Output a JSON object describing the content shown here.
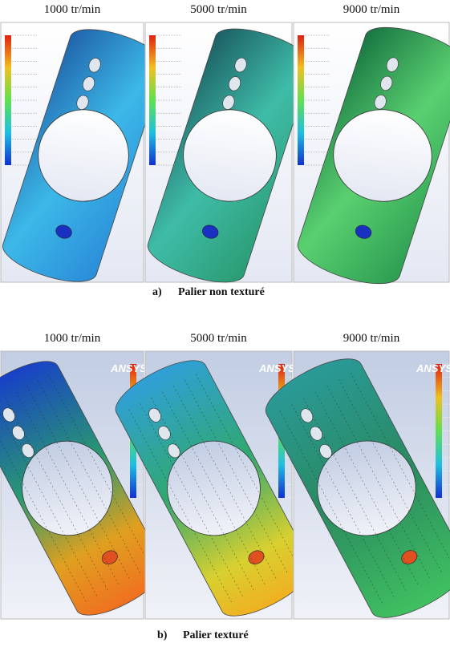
{
  "figure_a": {
    "letter": "a)",
    "caption": "Palier non texturé",
    "panels": [
      {
        "label": "1000 tr/min"
      },
      {
        "label": "5000 tr/min"
      },
      {
        "label": "9000 tr/min"
      }
    ]
  },
  "figure_b": {
    "letter": "b)",
    "caption": "Palier texturé",
    "brand": "ANSYS",
    "panels": [
      {
        "label": "1000 tr/min"
      },
      {
        "label": "5000 tr/min"
      },
      {
        "label": "9000 tr/min"
      }
    ]
  }
}
